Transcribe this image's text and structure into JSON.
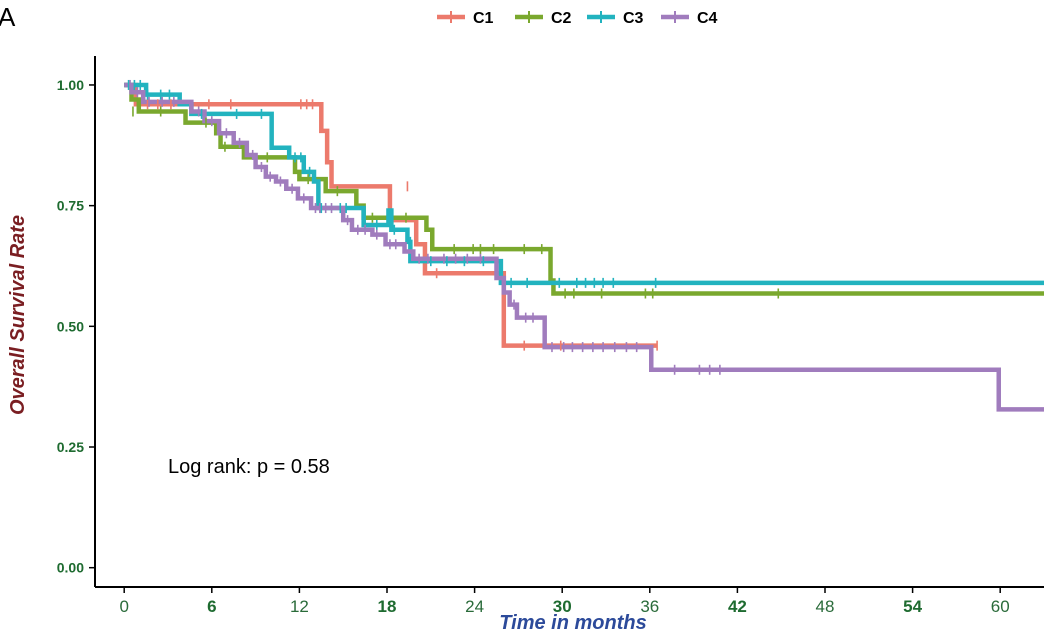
{
  "panel_label": "A",
  "annotation": "Log rank: p = 0.58",
  "colors": {
    "C1": "#ec7a6c",
    "C2": "#7aa82e",
    "C3": "#22b3bf",
    "C4": "#a07cbd",
    "ytick": "#1e6b30",
    "xtick_bold": "#1e6b30",
    "xtick_normal": "#2a6b3a",
    "xlabel": "#2c4a9a",
    "ylabel": "#7a1e22"
  },
  "chart_data": {
    "type": "line",
    "subtype": "kaplan-meier",
    "xlabel": "Time in months",
    "ylabel": "Overall Survival Rate",
    "xlim": [
      -2,
      63
    ],
    "ylim": [
      -0.04,
      1.06
    ],
    "xticks": [
      0,
      6,
      12,
      18,
      24,
      30,
      36,
      42,
      48,
      54,
      60
    ],
    "xtick_labels": [
      "0",
      "6",
      "12",
      "18",
      "24",
      "30",
      "36",
      "42",
      "48",
      "54",
      "60"
    ],
    "bold_xticks": [
      "6",
      "18",
      "30",
      "42",
      "54"
    ],
    "yticks": [
      0,
      0.25,
      0.5,
      0.75,
      1.0
    ],
    "ytick_labels": [
      "0.00",
      "0.25",
      "0.50",
      "0.75",
      "1.00"
    ],
    "legend_position": "top",
    "series": [
      {
        "name": "C1",
        "steps": [
          [
            0,
            1.0
          ],
          [
            0.8,
            0.96
          ],
          [
            13,
            0.96
          ],
          [
            13.5,
            0.905
          ],
          [
            13.9,
            0.84
          ],
          [
            14.2,
            0.79
          ],
          [
            18,
            0.79
          ],
          [
            18.2,
            0.72
          ],
          [
            19.8,
            0.72
          ],
          [
            20,
            0.67
          ],
          [
            20.6,
            0.61
          ],
          [
            25.8,
            0.61
          ],
          [
            26,
            0.46
          ],
          [
            36.5,
            0.46
          ]
        ],
        "censors": [
          [
            1.6,
            0.96
          ],
          [
            2.3,
            0.96
          ],
          [
            3.2,
            0.96
          ],
          [
            5.8,
            0.96
          ],
          [
            7.3,
            0.96
          ],
          [
            12.1,
            0.96
          ],
          [
            12.5,
            0.96
          ],
          [
            12.9,
            0.96
          ],
          [
            19.4,
            0.79
          ],
          [
            21.4,
            0.61
          ],
          [
            27.4,
            0.46
          ],
          [
            29.9,
            0.46
          ],
          [
            36.5,
            0.46
          ]
        ]
      },
      {
        "name": "C2",
        "steps": [
          [
            0,
            1.0
          ],
          [
            0.5,
            0.97
          ],
          [
            1,
            0.945
          ],
          [
            4,
            0.945
          ],
          [
            4.2,
            0.922
          ],
          [
            6.3,
            0.9
          ],
          [
            6.6,
            0.872
          ],
          [
            8.2,
            0.85
          ],
          [
            11.5,
            0.85
          ],
          [
            11.7,
            0.82
          ],
          [
            12,
            0.805
          ],
          [
            13.6,
            0.805
          ],
          [
            13.8,
            0.78
          ],
          [
            15.7,
            0.78
          ],
          [
            15.9,
            0.75
          ],
          [
            16.4,
            0.725
          ],
          [
            20.4,
            0.725
          ],
          [
            20.7,
            0.7
          ],
          [
            21.1,
            0.66
          ],
          [
            29,
            0.66
          ],
          [
            29.2,
            0.595
          ],
          [
            29.4,
            0.568
          ],
          [
            63,
            0.568
          ]
        ],
        "censors": [
          [
            0.6,
            0.945
          ],
          [
            2.5,
            0.945
          ],
          [
            5.6,
            0.922
          ],
          [
            6.9,
            0.872
          ],
          [
            9.8,
            0.85
          ],
          [
            12.6,
            0.805
          ],
          [
            14.6,
            0.78
          ],
          [
            17,
            0.725
          ],
          [
            19.3,
            0.725
          ],
          [
            22.6,
            0.66
          ],
          [
            23.9,
            0.66
          ],
          [
            24.4,
            0.66
          ],
          [
            25.3,
            0.66
          ],
          [
            27.4,
            0.66
          ],
          [
            28.6,
            0.66
          ],
          [
            30.2,
            0.568
          ],
          [
            30.8,
            0.568
          ],
          [
            32.7,
            0.568
          ],
          [
            35.7,
            0.568
          ],
          [
            36.2,
            0.568
          ],
          [
            44.8,
            0.568
          ]
        ]
      },
      {
        "name": "C3",
        "steps": [
          [
            0,
            1.0
          ],
          [
            1.5,
            0.98
          ],
          [
            3.8,
            0.96
          ],
          [
            4.6,
            0.94
          ],
          [
            9.6,
            0.94
          ],
          [
            10.1,
            0.87
          ],
          [
            11.3,
            0.85
          ],
          [
            12.3,
            0.82
          ],
          [
            13,
            0.8
          ],
          [
            13.3,
            0.745
          ],
          [
            16.3,
            0.745
          ],
          [
            16.4,
            0.71
          ],
          [
            17.8,
            0.71
          ],
          [
            18.1,
            0.74
          ],
          [
            18.3,
            0.7
          ],
          [
            19.4,
            0.675
          ],
          [
            19.6,
            0.635
          ],
          [
            25.5,
            0.635
          ],
          [
            25.8,
            0.59
          ],
          [
            63,
            0.59
          ]
        ],
        "censors": [
          [
            0.3,
            1.0
          ],
          [
            0.7,
            1.0
          ],
          [
            1.1,
            1.0
          ],
          [
            1.6,
            0.98
          ],
          [
            2.5,
            0.98
          ],
          [
            3.1,
            0.98
          ],
          [
            5.3,
            0.94
          ],
          [
            7.7,
            0.94
          ],
          [
            9.4,
            0.94
          ],
          [
            11.7,
            0.85
          ],
          [
            12.1,
            0.85
          ],
          [
            12.7,
            0.82
          ],
          [
            13.5,
            0.745
          ],
          [
            14.8,
            0.745
          ],
          [
            15.2,
            0.745
          ],
          [
            16.5,
            0.71
          ],
          [
            17.3,
            0.71
          ],
          [
            18.5,
            0.7
          ],
          [
            19.6,
            0.675
          ],
          [
            21,
            0.635
          ],
          [
            22.1,
            0.635
          ],
          [
            23.3,
            0.635
          ],
          [
            24.6,
            0.635
          ],
          [
            26.5,
            0.59
          ],
          [
            27.6,
            0.59
          ],
          [
            29.8,
            0.59
          ],
          [
            31,
            0.59
          ],
          [
            31.6,
            0.59
          ],
          [
            32.2,
            0.59
          ],
          [
            32.8,
            0.59
          ],
          [
            33.5,
            0.59
          ],
          [
            36.4,
            0.59
          ]
        ]
      },
      {
        "name": "C4",
        "steps": [
          [
            0,
            1.0
          ],
          [
            0.5,
            0.985
          ],
          [
            1.3,
            0.965
          ],
          [
            4.6,
            0.945
          ],
          [
            5.5,
            0.925
          ],
          [
            6.5,
            0.9
          ],
          [
            7.5,
            0.88
          ],
          [
            8.4,
            0.855
          ],
          [
            9,
            0.83
          ],
          [
            9.7,
            0.81
          ],
          [
            10.4,
            0.8
          ],
          [
            11.1,
            0.785
          ],
          [
            11.9,
            0.765
          ],
          [
            12.8,
            0.745
          ],
          [
            14.6,
            0.745
          ],
          [
            15,
            0.72
          ],
          [
            15.6,
            0.7
          ],
          [
            17,
            0.69
          ],
          [
            17.9,
            0.67
          ],
          [
            19.2,
            0.655
          ],
          [
            19.8,
            0.64
          ],
          [
            25.2,
            0.64
          ],
          [
            25.5,
            0.6
          ],
          [
            26,
            0.57
          ],
          [
            26.4,
            0.545
          ],
          [
            26.9,
            0.518
          ],
          [
            28.4,
            0.518
          ],
          [
            28.8,
            0.457
          ],
          [
            35.9,
            0.457
          ],
          [
            36.1,
            0.41
          ],
          [
            59.6,
            0.41
          ],
          [
            59.9,
            0.328
          ],
          [
            63,
            0.328
          ]
        ],
        "censors": [
          [
            0.4,
            1.0
          ],
          [
            0.9,
            0.985
          ],
          [
            1.7,
            0.965
          ],
          [
            2.6,
            0.965
          ],
          [
            3.4,
            0.965
          ],
          [
            5.1,
            0.945
          ],
          [
            6,
            0.925
          ],
          [
            7,
            0.9
          ],
          [
            7.9,
            0.88
          ],
          [
            8.8,
            0.855
          ],
          [
            9.4,
            0.83
          ],
          [
            10,
            0.81
          ],
          [
            10.7,
            0.8
          ],
          [
            11.5,
            0.785
          ],
          [
            12.3,
            0.765
          ],
          [
            13.1,
            0.745
          ],
          [
            13.4,
            0.745
          ],
          [
            13.8,
            0.745
          ],
          [
            14.2,
            0.745
          ],
          [
            15.3,
            0.72
          ],
          [
            16,
            0.7
          ],
          [
            16.5,
            0.7
          ],
          [
            17.3,
            0.69
          ],
          [
            18.2,
            0.67
          ],
          [
            18.6,
            0.67
          ],
          [
            20.2,
            0.64
          ],
          [
            20.8,
            0.64
          ],
          [
            21.9,
            0.64
          ],
          [
            22.7,
            0.64
          ],
          [
            23.5,
            0.64
          ],
          [
            24.4,
            0.64
          ],
          [
            26.7,
            0.545
          ],
          [
            27.5,
            0.518
          ],
          [
            28,
            0.518
          ],
          [
            29.3,
            0.457
          ],
          [
            30.1,
            0.457
          ],
          [
            30.7,
            0.457
          ],
          [
            31.4,
            0.457
          ],
          [
            32.1,
            0.457
          ],
          [
            32.8,
            0.457
          ],
          [
            33.6,
            0.457
          ],
          [
            34.4,
            0.457
          ],
          [
            35.1,
            0.457
          ],
          [
            37.7,
            0.41
          ],
          [
            39.4,
            0.41
          ],
          [
            40.1,
            0.41
          ],
          [
            40.8,
            0.41
          ]
        ]
      }
    ]
  }
}
